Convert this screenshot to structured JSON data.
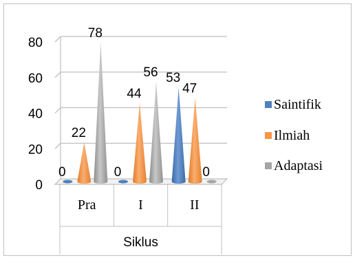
{
  "chart_data": {
    "type": "bar",
    "style": "3d-cone",
    "categories": [
      "Pra",
      "I",
      "II"
    ],
    "series": [
      {
        "name": "Saintifik",
        "color": "#4f81bd",
        "values": [
          0,
          0,
          53
        ]
      },
      {
        "name": "Ilmiah",
        "color": "#f79646",
        "values": [
          22,
          44,
          47
        ]
      },
      {
        "name": "Adaptasi",
        "color": "#a6a6a6",
        "values": [
          78,
          56,
          0
        ]
      }
    ],
    "xlabel": "Siklus",
    "ylabel": "",
    "ylim": [
      0,
      80
    ],
    "yticks": [
      "0",
      "20",
      "40",
      "60",
      "80"
    ],
    "data_labels": [
      [
        "0",
        "0",
        "53"
      ],
      [
        "22",
        "44",
        "47"
      ],
      [
        "78",
        "56",
        "0"
      ]
    ],
    "grid": true,
    "legend_position": "right"
  }
}
